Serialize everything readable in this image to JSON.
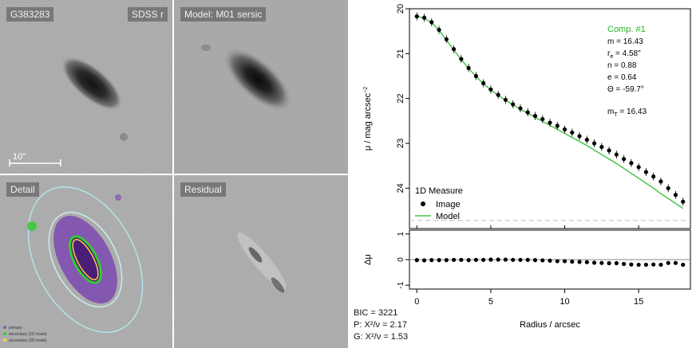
{
  "panels": {
    "galaxy_id": "G383283",
    "band": "SDSS r",
    "model": "Model: M01 sersic",
    "detail": "Detail",
    "residual": "Residual",
    "scale_bar": "10\"",
    "mask_legend": [
      "primary",
      "secondary (1D mask)",
      "secondary (2D mask)"
    ]
  },
  "stats": {
    "bic": "BIC = 3221",
    "p": "P: X²/ν = 2.17",
    "g": "G: X²/ν = 1.53"
  },
  "colors": {
    "model_line": "#22bb22",
    "comp_text": "#22bb22",
    "points": "#000000",
    "panel_bg": "#a9a9a9",
    "ellipse_outer": "#aee0e6",
    "mask": "#8a5ab8"
  },
  "component": {
    "title": "Comp. #1",
    "m": "m = 16.43",
    "re_label": "r",
    "re_sub": "e",
    "re_value": " = 4.58\"",
    "n": "n = 0.88",
    "e": "e = 0.64",
    "theta": "Θ = -59.7°",
    "mt_label": "m",
    "mt_sub": "T",
    "mt_value": " = 16.43"
  },
  "legend": {
    "title": "1D Measure",
    "items": [
      "Image",
      "Model"
    ]
  },
  "chart_data": [
    {
      "type": "scatter",
      "title": "",
      "xlabel": "",
      "ylabel": "μ / mag arcsec",
      "ylabel_sup": "−2",
      "y_reversed": true,
      "xlim": [
        -0.5,
        18.5
      ],
      "ylim": [
        20,
        24.9
      ],
      "yticks": [
        20,
        21,
        22,
        23,
        24
      ],
      "series": [
        {
          "name": "Image",
          "x": [
            0.0,
            0.5,
            1.0,
            1.5,
            2.0,
            2.5,
            3.0,
            3.5,
            4.0,
            4.5,
            5.0,
            5.5,
            6.0,
            6.5,
            7.0,
            7.5,
            8.0,
            8.5,
            9.0,
            9.5,
            10.0,
            10.5,
            11.0,
            11.5,
            12.0,
            12.5,
            13.0,
            13.5,
            14.0,
            14.5,
            15.0,
            15.5,
            16.0,
            16.5,
            17.0,
            17.5,
            18.0
          ],
          "y": [
            20.17,
            20.2,
            20.3,
            20.47,
            20.68,
            20.9,
            21.12,
            21.32,
            21.5,
            21.66,
            21.8,
            21.92,
            22.03,
            22.13,
            22.22,
            22.31,
            22.39,
            22.46,
            22.54,
            22.61,
            22.69,
            22.76,
            22.84,
            22.92,
            23.0,
            23.08,
            23.16,
            23.25,
            23.35,
            23.44,
            23.53,
            23.64,
            23.74,
            23.85,
            24.0,
            24.15,
            24.3
          ]
        },
        {
          "name": "Model",
          "x": [
            0.0,
            0.5,
            1.0,
            1.5,
            2.0,
            2.5,
            3.0,
            3.5,
            4.0,
            4.5,
            5.0,
            5.5,
            6.0,
            6.5,
            7.0,
            7.5,
            8.0,
            8.5,
            9.0,
            9.5,
            10.0,
            10.5,
            11.0,
            11.5,
            12.0,
            12.5,
            13.0,
            13.5,
            14.0,
            14.5,
            15.0,
            15.5,
            16.0,
            16.5,
            17.0,
            17.5,
            18.0
          ],
          "y": [
            20.17,
            20.21,
            20.31,
            20.48,
            20.7,
            20.92,
            21.13,
            21.33,
            21.51,
            21.67,
            21.81,
            21.93,
            22.04,
            22.14,
            22.24,
            22.33,
            22.42,
            22.51,
            22.6,
            22.69,
            22.78,
            22.87,
            22.96,
            23.05,
            23.15,
            23.25,
            23.35,
            23.45,
            23.56,
            23.67,
            23.78,
            23.89,
            24.0,
            24.12,
            24.23,
            24.34,
            24.45
          ]
        }
      ],
      "reference_line_y": 24.72
    },
    {
      "type": "scatter",
      "title": "",
      "xlabel": "Radius / arcsec",
      "ylabel": "Δμ",
      "xlim": [
        -0.5,
        18.5
      ],
      "ylim": [
        -1.15,
        1.15
      ],
      "xticks": [
        0,
        5,
        10,
        15
      ],
      "yticks": [
        1,
        0,
        -1
      ],
      "series": [
        {
          "name": "",
          "x": [
            0.0,
            0.5,
            1.0,
            1.5,
            2.0,
            2.5,
            3.0,
            3.5,
            4.0,
            4.5,
            5.0,
            5.5,
            6.0,
            6.5,
            7.0,
            7.5,
            8.0,
            8.5,
            9.0,
            9.5,
            10.0,
            10.5,
            11.0,
            11.5,
            12.0,
            12.5,
            13.0,
            13.5,
            14.0,
            14.5,
            15.0,
            15.5,
            16.0,
            16.5,
            17.0,
            17.5,
            18.0
          ],
          "y": [
            -0.02,
            -0.03,
            -0.02,
            -0.02,
            -0.02,
            -0.01,
            -0.01,
            -0.02,
            -0.01,
            -0.01,
            0.0,
            0.0,
            0.0,
            -0.01,
            -0.01,
            -0.01,
            -0.02,
            -0.03,
            -0.04,
            -0.06,
            -0.06,
            -0.08,
            -0.09,
            -0.1,
            -0.12,
            -0.13,
            -0.14,
            -0.14,
            -0.17,
            -0.19,
            -0.2,
            -0.2,
            -0.19,
            -0.2,
            -0.13,
            -0.13,
            -0.2
          ]
        }
      ],
      "reference_line_y": 0
    }
  ]
}
